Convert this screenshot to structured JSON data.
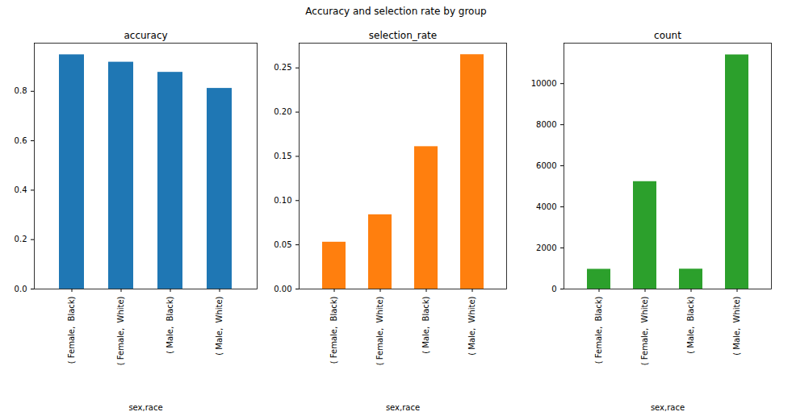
{
  "title": "Accuracy and selection rate by group",
  "chart_data": [
    {
      "type": "bar",
      "title": "accuracy",
      "x_label": "sex,race",
      "categories": [
        "( Female,  Black)",
        "( Female,  White)",
        "( Male,  Black)",
        "( Male,  White)"
      ],
      "values": [
        0.948,
        0.918,
        0.877,
        0.812
      ],
      "color": "#1f77b4",
      "ylim": [
        0,
        0.995
      ],
      "yticks": [
        {
          "value": 0,
          "label": "0.0"
        },
        0.2,
        0.4,
        0.6,
        0.8
      ],
      "grid": false
    },
    {
      "type": "bar",
      "title": "selection_rate",
      "x_label": "sex,race",
      "categories": [
        "( Female,  Black)",
        "( Female,  White)",
        "( Male,  Black)",
        "( Male,  White)"
      ],
      "values": [
        0.053,
        0.084,
        0.161,
        0.265
      ],
      "color": "#ff7f0e",
      "ylim": [
        0,
        0.278
      ],
      "yticks": [
        {
          "value": 0,
          "label": "0.00"
        },
        0.05,
        {
          "value": 0.1,
          "label": "0.10"
        },
        0.15,
        {
          "value": 0.2,
          "label": "0.20"
        },
        0.25
      ],
      "grid": false
    },
    {
      "type": "bar",
      "title": "count",
      "x_label": "sex,race",
      "categories": [
        "( Female,  Black)",
        "( Female,  White)",
        "( Male,  Black)",
        "( Male,  White)"
      ],
      "values": [
        963,
        5230,
        970,
        11400
      ],
      "color": "#2ca02c",
      "ylim": [
        0,
        11970
      ],
      "yticks": [
        0,
        2000,
        4000,
        6000,
        8000,
        10000
      ],
      "grid": false
    }
  ]
}
